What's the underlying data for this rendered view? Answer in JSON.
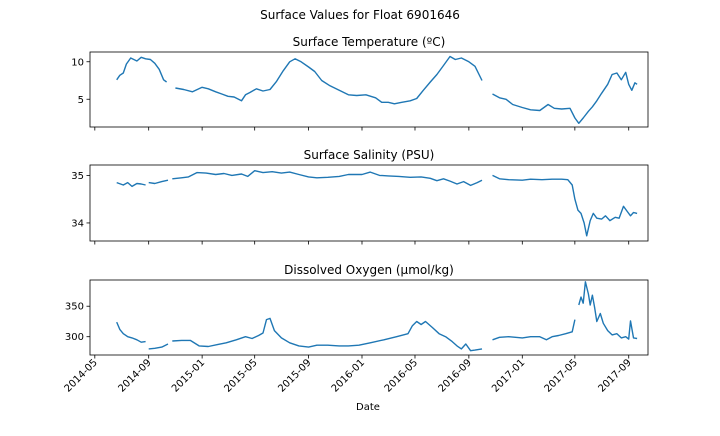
{
  "figure_title": "Surface Values for Float 6901646",
  "xlabel": "Date",
  "x_ticks": [
    "2014-05",
    "2014-09",
    "2015-01",
    "2015-05",
    "2015-09",
    "2016-01",
    "2016-05",
    "2016-09",
    "2017-01",
    "2017-05",
    "2017-09"
  ],
  "x_range": [
    "2014-04-20",
    "2017-10-15"
  ],
  "line_color": "#1f77b4",
  "chart_data": [
    {
      "type": "line",
      "title": "Surface Temperature (ºC)",
      "ylim": [
        1.3,
        11.3
      ],
      "yticks": [
        "5",
        "10"
      ],
      "segments": [
        [
          [
            "2014-06-20",
            7.6
          ],
          [
            "2014-06-27",
            8.2
          ],
          [
            "2014-07-05",
            8.5
          ],
          [
            "2014-07-12",
            9.7
          ],
          [
            "2014-07-22",
            10.5
          ],
          [
            "2014-08-05",
            10.1
          ],
          [
            "2014-08-15",
            10.6
          ],
          [
            "2014-08-25",
            10.4
          ],
          [
            "2014-09-05",
            10.3
          ],
          [
            "2014-09-15",
            9.8
          ],
          [
            "2014-09-25",
            9.0
          ],
          [
            "2014-10-05",
            7.6
          ],
          [
            "2014-10-12",
            7.3
          ]
        ],
        [
          [
            "2014-11-01",
            6.5
          ],
          [
            "2014-11-20",
            6.3
          ],
          [
            "2014-12-10",
            6.0
          ],
          [
            "2015-01-01",
            6.6
          ],
          [
            "2015-01-15",
            6.4
          ],
          [
            "2015-02-01",
            6.0
          ],
          [
            "2015-02-15",
            5.7
          ],
          [
            "2015-03-01",
            5.4
          ],
          [
            "2015-03-15",
            5.3
          ],
          [
            "2015-04-01",
            4.8
          ],
          [
            "2015-04-10",
            5.6
          ],
          [
            "2015-04-20",
            5.9
          ],
          [
            "2015-05-05",
            6.4
          ],
          [
            "2015-05-20",
            6.1
          ],
          [
            "2015-06-05",
            6.3
          ],
          [
            "2015-06-20",
            7.4
          ],
          [
            "2015-07-05",
            8.8
          ],
          [
            "2015-07-20",
            10.0
          ],
          [
            "2015-08-01",
            10.4
          ],
          [
            "2015-08-15",
            10.0
          ],
          [
            "2015-09-01",
            9.3
          ],
          [
            "2015-09-15",
            8.7
          ],
          [
            "2015-10-01",
            7.5
          ],
          [
            "2015-10-20",
            6.8
          ],
          [
            "2015-11-10",
            6.2
          ],
          [
            "2015-12-01",
            5.6
          ],
          [
            "2015-12-20",
            5.5
          ],
          [
            "2016-01-10",
            5.6
          ],
          [
            "2016-02-01",
            5.2
          ],
          [
            "2016-02-15",
            4.6
          ],
          [
            "2016-03-01",
            4.6
          ],
          [
            "2016-03-15",
            4.4
          ],
          [
            "2016-04-01",
            4.6
          ],
          [
            "2016-04-20",
            4.8
          ],
          [
            "2016-05-05",
            5.1
          ],
          [
            "2016-05-20",
            6.2
          ],
          [
            "2016-06-05",
            7.3
          ],
          [
            "2016-06-20",
            8.3
          ],
          [
            "2016-07-05",
            9.5
          ],
          [
            "2016-07-20",
            10.7
          ],
          [
            "2016-08-01",
            10.3
          ],
          [
            "2016-08-15",
            10.5
          ],
          [
            "2016-09-01",
            10.0
          ],
          [
            "2016-09-15",
            9.4
          ],
          [
            "2016-10-01",
            7.5
          ]
        ],
        [
          [
            "2016-10-25",
            5.7
          ],
          [
            "2016-11-10",
            5.2
          ],
          [
            "2016-11-25",
            5.0
          ],
          [
            "2016-12-10",
            4.3
          ],
          [
            "2017-01-01",
            3.9
          ],
          [
            "2017-01-20",
            3.6
          ],
          [
            "2017-02-10",
            3.5
          ],
          [
            "2017-03-01",
            4.3
          ],
          [
            "2017-03-15",
            3.8
          ],
          [
            "2017-04-01",
            3.7
          ],
          [
            "2017-04-20",
            3.8
          ],
          [
            "2017-05-01",
            2.5
          ],
          [
            "2017-05-10",
            1.8
          ],
          [
            "2017-05-20",
            2.5
          ],
          [
            "2017-06-01",
            3.4
          ],
          [
            "2017-06-10",
            4.0
          ],
          [
            "2017-06-20",
            4.8
          ],
          [
            "2017-07-01",
            5.8
          ],
          [
            "2017-07-15",
            7.0
          ],
          [
            "2017-07-25",
            8.3
          ],
          [
            "2017-08-05",
            8.5
          ],
          [
            "2017-08-15",
            7.6
          ],
          [
            "2017-08-25",
            8.6
          ],
          [
            "2017-09-01",
            7.0
          ],
          [
            "2017-09-08",
            6.2
          ],
          [
            "2017-09-15",
            7.2
          ],
          [
            "2017-09-20",
            7.0
          ]
        ]
      ]
    },
    {
      "type": "line",
      "title": "Surface Salinity (PSU)",
      "ylim": [
        33.62,
        35.22
      ],
      "yticks": [
        "34",
        "35"
      ],
      "segments": [
        [
          [
            "2014-06-20",
            34.85
          ],
          [
            "2014-07-05",
            34.8
          ],
          [
            "2014-07-15",
            34.85
          ],
          [
            "2014-07-25",
            34.77
          ],
          [
            "2014-08-05",
            34.83
          ],
          [
            "2014-08-15",
            34.82
          ],
          [
            "2014-08-25",
            34.8
          ]
        ],
        [
          [
            "2014-09-01",
            34.85
          ],
          [
            "2014-09-15",
            34.83
          ],
          [
            "2014-10-01",
            34.87
          ],
          [
            "2014-10-15",
            34.9
          ]
        ],
        [
          [
            "2014-10-25",
            34.93
          ],
          [
            "2014-11-15",
            34.95
          ],
          [
            "2014-12-01",
            34.97
          ],
          [
            "2014-12-20",
            35.06
          ],
          [
            "2015-01-10",
            35.05
          ],
          [
            "2015-02-01",
            35.02
          ],
          [
            "2015-02-20",
            35.04
          ],
          [
            "2015-03-10",
            35.0
          ],
          [
            "2015-04-01",
            35.03
          ],
          [
            "2015-04-15",
            34.98
          ],
          [
            "2015-05-01",
            35.1
          ],
          [
            "2015-05-20",
            35.06
          ],
          [
            "2015-06-10",
            35.08
          ],
          [
            "2015-07-01",
            35.05
          ],
          [
            "2015-07-20",
            35.07
          ],
          [
            "2015-08-10",
            35.02
          ],
          [
            "2015-09-01",
            34.97
          ],
          [
            "2015-09-20",
            34.95
          ],
          [
            "2015-10-15",
            34.96
          ],
          [
            "2015-11-10",
            34.98
          ],
          [
            "2015-12-01",
            35.02
          ],
          [
            "2016-01-01",
            35.02
          ],
          [
            "2016-01-20",
            35.07
          ],
          [
            "2016-02-10",
            35.0
          ],
          [
            "2016-03-01",
            34.99
          ],
          [
            "2016-03-25",
            34.98
          ],
          [
            "2016-04-20",
            34.96
          ],
          [
            "2016-05-15",
            34.97
          ],
          [
            "2016-06-05",
            34.94
          ],
          [
            "2016-06-20",
            34.89
          ],
          [
            "2016-07-05",
            34.93
          ],
          [
            "2016-07-20",
            34.88
          ],
          [
            "2016-08-05",
            34.82
          ],
          [
            "2016-08-20",
            34.87
          ],
          [
            "2016-09-05",
            34.79
          ],
          [
            "2016-09-20",
            34.85
          ],
          [
            "2016-10-01",
            34.9
          ]
        ],
        [
          [
            "2016-10-25",
            35.0
          ],
          [
            "2016-11-10",
            34.93
          ],
          [
            "2016-12-01",
            34.91
          ],
          [
            "2017-01-01",
            34.9
          ],
          [
            "2017-01-20",
            34.92
          ],
          [
            "2017-02-15",
            34.91
          ],
          [
            "2017-03-10",
            34.92
          ],
          [
            "2017-04-01",
            34.92
          ],
          [
            "2017-04-15",
            34.91
          ],
          [
            "2017-04-25",
            34.8
          ],
          [
            "2017-05-01",
            34.5
          ],
          [
            "2017-05-08",
            34.27
          ],
          [
            "2017-05-15",
            34.2
          ],
          [
            "2017-05-22",
            34.0
          ],
          [
            "2017-05-28",
            33.73
          ],
          [
            "2017-06-05",
            34.05
          ],
          [
            "2017-06-12",
            34.2
          ],
          [
            "2017-06-20",
            34.1
          ],
          [
            "2017-07-01",
            34.08
          ],
          [
            "2017-07-10",
            34.15
          ],
          [
            "2017-07-20",
            34.05
          ],
          [
            "2017-08-01",
            34.12
          ],
          [
            "2017-08-10",
            34.1
          ],
          [
            "2017-08-20",
            34.35
          ],
          [
            "2017-08-28",
            34.25
          ],
          [
            "2017-09-05",
            34.15
          ],
          [
            "2017-09-12",
            34.22
          ],
          [
            "2017-09-20",
            34.2
          ]
        ]
      ]
    },
    {
      "type": "line",
      "title": "Dissolved Oxygen (µmol/kg)",
      "ylim": [
        270,
        393
      ],
      "yticks": [
        "300",
        "350"
      ],
      "segments": [
        [
          [
            "2014-06-20",
            324
          ],
          [
            "2014-06-27",
            312
          ],
          [
            "2014-07-05",
            305
          ],
          [
            "2014-07-15",
            300
          ],
          [
            "2014-07-25",
            298
          ],
          [
            "2014-08-05",
            295
          ],
          [
            "2014-08-15",
            291
          ],
          [
            "2014-08-25",
            292
          ]
        ],
        [
          [
            "2014-09-01",
            280
          ],
          [
            "2014-09-15",
            281
          ],
          [
            "2014-10-01",
            283
          ],
          [
            "2014-10-15",
            288
          ]
        ],
        [
          [
            "2014-10-25",
            293
          ],
          [
            "2014-11-15",
            294
          ],
          [
            "2014-12-05",
            294
          ],
          [
            "2014-12-25",
            285
          ],
          [
            "2015-01-15",
            284
          ],
          [
            "2015-02-05",
            287
          ],
          [
            "2015-02-25",
            290
          ],
          [
            "2015-03-20",
            295
          ],
          [
            "2015-04-10",
            300
          ],
          [
            "2015-04-25",
            297
          ],
          [
            "2015-05-10",
            302
          ],
          [
            "2015-05-20",
            306
          ],
          [
            "2015-05-28",
            328
          ],
          [
            "2015-06-05",
            330
          ],
          [
            "2015-06-15",
            310
          ],
          [
            "2015-07-01",
            298
          ],
          [
            "2015-07-20",
            290
          ],
          [
            "2015-08-10",
            285
          ],
          [
            "2015-09-01",
            283
          ],
          [
            "2015-09-20",
            286
          ],
          [
            "2015-10-15",
            286
          ],
          [
            "2015-11-10",
            285
          ],
          [
            "2015-12-01",
            285
          ],
          [
            "2015-12-25",
            286
          ],
          [
            "2016-01-20",
            290
          ],
          [
            "2016-02-20",
            295
          ],
          [
            "2016-03-20",
            300
          ],
          [
            "2016-04-15",
            305
          ],
          [
            "2016-04-25",
            318
          ],
          [
            "2016-05-05",
            325
          ],
          [
            "2016-05-15",
            320
          ],
          [
            "2016-05-25",
            325
          ],
          [
            "2016-06-10",
            315
          ],
          [
            "2016-06-25",
            305
          ],
          [
            "2016-07-10",
            300
          ],
          [
            "2016-07-25",
            292
          ],
          [
            "2016-08-05",
            285
          ],
          [
            "2016-08-15",
            280
          ],
          [
            "2016-08-25",
            288
          ],
          [
            "2016-09-05",
            277
          ],
          [
            "2016-09-15",
            278
          ],
          [
            "2016-10-01",
            280
          ]
        ],
        [
          [
            "2016-10-25",
            295
          ],
          [
            "2016-11-10",
            299
          ],
          [
            "2016-12-01",
            300
          ],
          [
            "2017-01-01",
            298
          ],
          [
            "2017-01-20",
            300
          ],
          [
            "2017-02-10",
            300
          ],
          [
            "2017-02-25",
            295
          ],
          [
            "2017-03-10",
            300
          ],
          [
            "2017-03-25",
            302
          ],
          [
            "2017-04-10",
            305
          ],
          [
            "2017-04-25",
            308
          ],
          [
            "2017-05-01",
            328
          ]
        ],
        [
          [
            "2017-05-10",
            352
          ],
          [
            "2017-05-15",
            365
          ],
          [
            "2017-05-20",
            355
          ],
          [
            "2017-05-25",
            390
          ],
          [
            "2017-06-01",
            370
          ],
          [
            "2017-06-05",
            352
          ],
          [
            "2017-06-10",
            368
          ],
          [
            "2017-06-15",
            348
          ],
          [
            "2017-06-20",
            325
          ],
          [
            "2017-06-28",
            338
          ],
          [
            "2017-07-05",
            322
          ],
          [
            "2017-07-15",
            310
          ],
          [
            "2017-07-25",
            303
          ],
          [
            "2017-08-05",
            305
          ],
          [
            "2017-08-15",
            298
          ],
          [
            "2017-08-25",
            300
          ],
          [
            "2017-09-01",
            296
          ],
          [
            "2017-09-05",
            326
          ],
          [
            "2017-09-12",
            298
          ],
          [
            "2017-09-20",
            297
          ]
        ]
      ]
    }
  ]
}
